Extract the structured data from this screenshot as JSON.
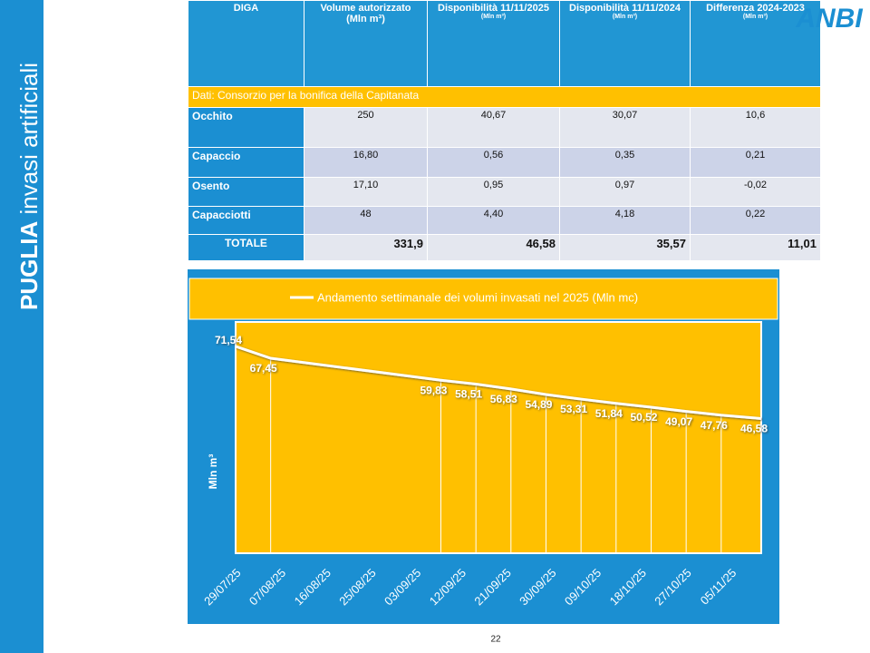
{
  "sidebar": {
    "bold": "PUGLIA",
    "rest": "invasi artificiali"
  },
  "logo": "ANBI",
  "page_number": "22",
  "table": {
    "columns": [
      {
        "title": "DIGA"
      },
      {
        "title": "Volume autorizzato",
        "unit": "(Mln m³)"
      },
      {
        "title": "Disponibilità 11/11/2025",
        "unit": "(Mln m³)"
      },
      {
        "title": "Disponibilità 11/11/2024",
        "unit": "(Mln m³)"
      },
      {
        "title": "Differenza 2024-2023",
        "unit": "(Mln m³)"
      }
    ],
    "source": "Dati: Consorzio per la bonifica della Capitanata",
    "rows": [
      [
        "Occhito",
        "250",
        "40,67",
        "30,07",
        "10,6"
      ],
      [
        "Capaccio",
        "16,80",
        "0,56",
        "0,35",
        "0,21"
      ],
      [
        "Osento",
        "17,10",
        "0,95",
        "0,97",
        "-0,02"
      ],
      [
        "Capacciotti",
        "48",
        "4,40",
        "4,18",
        "0,22"
      ]
    ],
    "total": [
      "TOTALE",
      "331,9",
      "46,58",
      "35,57",
      "11,01"
    ]
  },
  "chart_data": {
    "type": "line",
    "y_label": "Mln m³",
    "x": [
      "29/07/25",
      "05/08/25",
      "08/09/25",
      "15/09/25",
      "22/09/25",
      "29/09/25",
      "06/10/25",
      "13/10/25",
      "20/10/25",
      "27/10/25",
      "03/11/25",
      "11/11/25"
    ],
    "series": [
      {
        "name": "Andamento settimanale dei volumi invasati nel 2025 (Mln mc)",
        "color": "#ffffff",
        "values": [
          71.54,
          67.45,
          59.83,
          58.51,
          56.83,
          54.89,
          53.31,
          51.84,
          50.52,
          49.07,
          47.76,
          46.58
        ],
        "value_labels": [
          "71,54",
          "67,45",
          "59,83",
          "58,51",
          "56,83",
          "54,89",
          "53,31",
          "51,84",
          "50,52",
          "49,07",
          "47,76",
          "46,58"
        ]
      }
    ],
    "xlim": [
      "29/07/25",
      "11/11/25"
    ],
    "xticks": [
      "29/07/25",
      "07/08/25",
      "16/08/25",
      "25/08/25",
      "03/09/25",
      "12/09/25",
      "21/09/25",
      "30/09/25",
      "09/10/25",
      "18/10/25",
      "27/10/25",
      "05/11/25"
    ],
    "ylim": [
      0,
      80
    ],
    "plot_color": "#ffc000",
    "background": "#1b8fd2"
  }
}
